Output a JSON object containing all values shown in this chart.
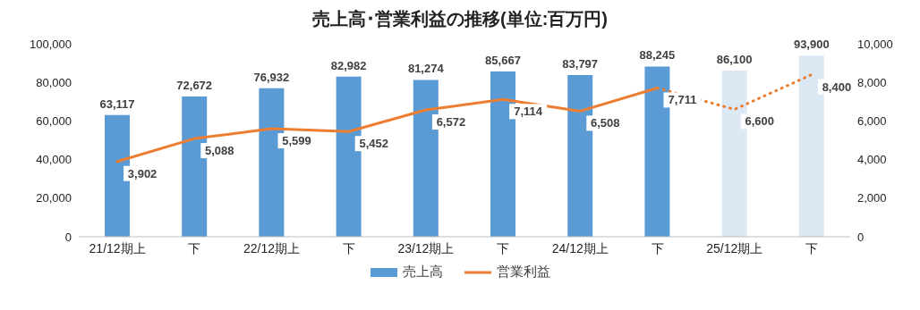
{
  "chart_data": {
    "type": "bar",
    "title": "売上高･営業利益の推移(単位:百万円)",
    "categories": [
      "21/12期上",
      "下",
      "22/12期上",
      "下",
      "23/12期上",
      "下",
      "24/12期上",
      "下",
      "25/12期上",
      "下"
    ],
    "series": [
      {
        "name": "売上高",
        "color": "#5b9bd5",
        "colors": [
          "#5b9bd5",
          "#5b9bd5",
          "#5b9bd5",
          "#5b9bd5",
          "#5b9bd5",
          "#5b9bd5",
          "#5b9bd5",
          "#5b9bd5",
          "#dde8f5",
          "#dde8f5"
        ],
        "values": [
          63117,
          72672,
          76932,
          82982,
          81274,
          85667,
          83797,
          88245,
          86100,
          93900
        ],
        "value_labels": [
          "63,117",
          "72,672",
          "76,932",
          "82,982",
          "81,274",
          "85,667",
          "83,797",
          "88,245",
          "86,100",
          "93,900"
        ]
      },
      {
        "type": "line",
        "name": "営業利益",
        "color": "#ed7d31",
        "axis": "y2",
        "line_style": "solid",
        "values": [
          3902,
          5088,
          5599,
          5452,
          6572,
          7114,
          6508,
          7711,
          null,
          null
        ],
        "value_labels": [
          "3,902",
          "5,088",
          "5,599",
          "5,452",
          "6,572",
          "7,114",
          "6,508",
          "7,711",
          null,
          null
        ]
      },
      {
        "type": "line",
        "color": "#ed7d31",
        "axis": "y2",
        "line_style": "dotted",
        "values": [
          null,
          null,
          null,
          null,
          null,
          null,
          null,
          7711,
          6600,
          8400
        ],
        "value_labels": [
          null,
          null,
          null,
          null,
          null,
          null,
          null,
          null,
          "6,600",
          "8,400"
        ]
      }
    ],
    "ylim": [
      0,
      100000
    ],
    "yticks": [
      0,
      {
        "value": 20000,
        "label": "20,000"
      },
      {
        "value": 40000,
        "label": "40,000"
      },
      {
        "value": 60000,
        "label": "60,000"
      },
      {
        "value": 80000,
        "label": "80,000"
      },
      {
        "value": 100000,
        "label": "100,000"
      }
    ],
    "y2lim": [
      0,
      10000
    ],
    "y2ticks": [
      0,
      {
        "value": 2000,
        "label": "2,000"
      },
      {
        "value": 4000,
        "label": "4,000"
      },
      {
        "value": 6000,
        "label": "6,000"
      },
      {
        "value": 8000,
        "label": "8,000"
      },
      {
        "value": 10000,
        "label": "10,000"
      }
    ],
    "grid": false,
    "legend": "bottom",
    "marker": "none"
  }
}
